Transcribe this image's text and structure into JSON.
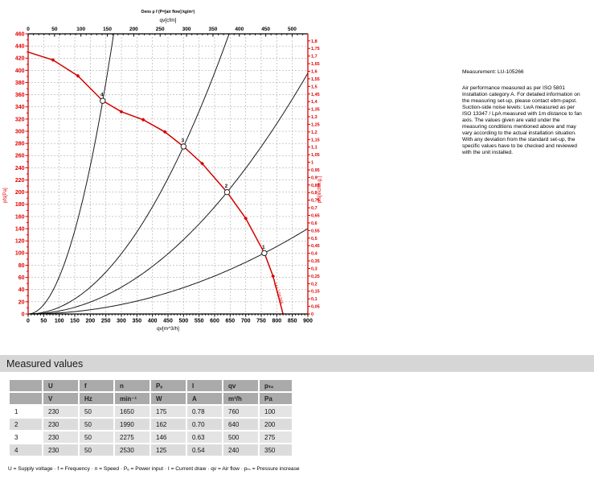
{
  "note": {
    "title": "Measurement: LU-105266",
    "body": "Air performance measured as per ISO 5801 Installation category A. For detailed information on the measuring set-up, please contact ebm-papst. Suction-side noise levels: LwA measured as per ISO 13347 / LpA measured with 1m distance to fan axis. The values given are valid under the measuring conditions mentioned above and may vary according to the actual installation situation. With any deviation from the standard set-up, the specific values have to be checked and reviewed with the unit installed."
  },
  "section": {
    "title": "Measured values"
  },
  "table": {
    "headers": [
      "",
      "U",
      "f",
      "n",
      "Pₑ",
      "I",
      "qv",
      "pₜₛ"
    ],
    "units": [
      "",
      "V",
      "Hz",
      "min⁻¹",
      "W",
      "A",
      "m³/h",
      "Pa"
    ],
    "rows": [
      [
        "1",
        "230",
        "50",
        "1650",
        "175",
        "0.78",
        "760",
        "100"
      ],
      [
        "2",
        "230",
        "50",
        "1990",
        "162",
        "0.70",
        "640",
        "200"
      ],
      [
        "3",
        "230",
        "50",
        "2275",
        "146",
        "0.63",
        "500",
        "275"
      ],
      [
        "4",
        "230",
        "50",
        "2530",
        "125",
        "0.54",
        "240",
        "350"
      ]
    ],
    "footnote": "U = Supply voltage · f = Frequency · n = Speed · Pₑ = Power input · I = Current draw · qv = Air flow · pₜₛ = Pressure increase"
  },
  "chart_data": {
    "type": "line",
    "title_note": "Dens ρ f (P=[air flow] kg/m³)",
    "curve_label": "LU-105266",
    "colors": {
      "curve": "#d40000",
      "axis_red": "#d40000",
      "label_red": "#e00000",
      "black": "#1a1a1a",
      "grid": "#999999"
    },
    "axes": {
      "bottom": {
        "label": "qv[m^3/h]",
        "min": 0,
        "max": 900,
        "step": 50,
        "ticks": [
          0,
          50,
          100,
          150,
          200,
          250,
          300,
          350,
          400,
          450,
          500,
          550,
          600,
          650,
          700,
          750,
          800,
          850,
          900
        ]
      },
      "top": {
        "label": "qv[cfm]",
        "min": 0,
        "max": 500,
        "step": 50,
        "cfm_to_m3h": 1.699,
        "ticks": [
          0,
          50,
          100,
          150,
          200,
          250,
          300,
          350,
          400,
          450,
          500
        ]
      },
      "left": {
        "label": "pfs[Pa]",
        "min": 0,
        "max": 460,
        "step": 20,
        "ticks": [
          0,
          20,
          40,
          60,
          80,
          100,
          120,
          140,
          160,
          180,
          200,
          220,
          240,
          260,
          280,
          300,
          320,
          340,
          360,
          380,
          400,
          420,
          440,
          460
        ]
      },
      "right": {
        "label": "pfs[inchw.g.]",
        "min": 0,
        "max": 1.8,
        "step": 0.05,
        "pa_per_unit": 249.09,
        "ticks": [
          "0",
          "0,05",
          "0,1",
          "0,15",
          "0,2",
          "0,25",
          "0,3",
          "0,35",
          "0,4",
          "0,45",
          "0,5",
          "0,55",
          "0,6",
          "0,65",
          "0,7",
          "0,75",
          "0,8",
          "0,85",
          "0,9",
          "0,95",
          "1",
          "1,05",
          "1,1",
          "1,15",
          "1,2",
          "1,25",
          "1,3",
          "1,35",
          "1,4",
          "1,45",
          "1,5",
          "1,55",
          "1,6",
          "1,65",
          "1,7",
          "1,75",
          "1,8"
        ]
      }
    },
    "fan_curve": {
      "points": [
        [
          0,
          430
        ],
        [
          80,
          417
        ],
        [
          160,
          391
        ],
        [
          240,
          350
        ],
        [
          300,
          332
        ],
        [
          370,
          319
        ],
        [
          440,
          299
        ],
        [
          500,
          275
        ],
        [
          560,
          247
        ],
        [
          640,
          200
        ],
        [
          700,
          157
        ],
        [
          760,
          100
        ],
        [
          788,
          62
        ],
        [
          810,
          20
        ],
        [
          820,
          0
        ]
      ],
      "marker_qv": [
        80,
        160,
        300,
        370,
        440,
        560,
        700,
        788
      ]
    },
    "operating_points": [
      {
        "label": "4",
        "qv": 240,
        "p": 350
      },
      {
        "label": "3",
        "qv": 500,
        "p": 275
      },
      {
        "label": "2",
        "qv": 640,
        "p": 200
      },
      {
        "label": "1",
        "qv": 760,
        "p": 100
      }
    ],
    "system_curves": [
      {
        "through_qv": 240,
        "through_p": 350
      },
      {
        "through_qv": 500,
        "through_p": 275
      },
      {
        "through_qv": 640,
        "through_p": 200
      },
      {
        "through_qv": 760,
        "through_p": 100
      }
    ]
  }
}
